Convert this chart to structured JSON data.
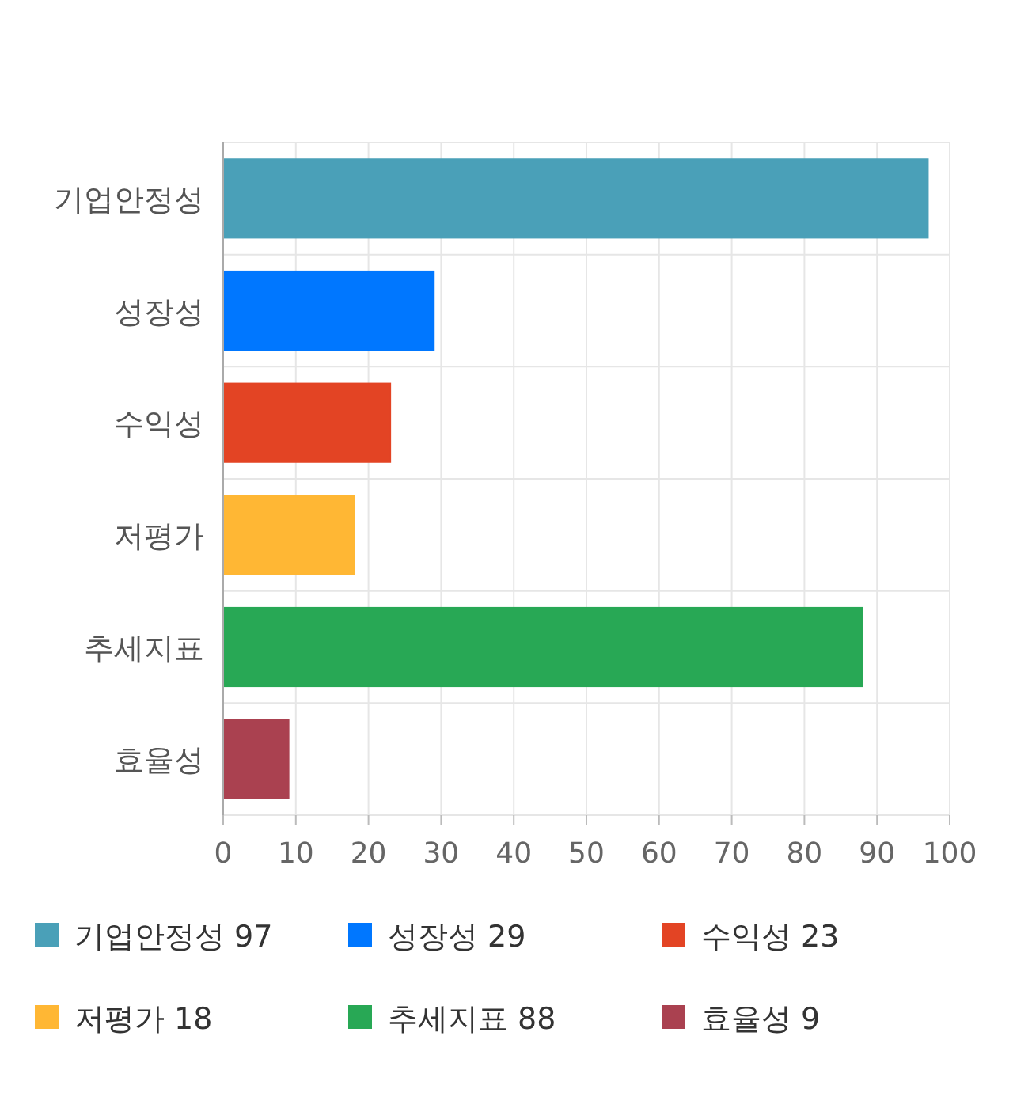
{
  "chart_data": {
    "type": "bar",
    "orientation": "horizontal",
    "stacked": true,
    "categories": [
      "기업안정성",
      "성장성",
      "수익성",
      "저평가",
      "추세지표",
      "효율성"
    ],
    "series": [
      {
        "name": "기업안정성 97",
        "color": "#4aa0b8",
        "values": [
          97,
          null,
          null,
          null,
          null,
          null
        ]
      },
      {
        "name": "성장성 29",
        "color": "#0077ff",
        "values": [
          null,
          29,
          null,
          null,
          null,
          null
        ]
      },
      {
        "name": "수익성 23",
        "color": "#e34424",
        "values": [
          null,
          null,
          23,
          null,
          null,
          null
        ]
      },
      {
        "name": "저평가 18",
        "color": "#ffb734",
        "values": [
          null,
          null,
          null,
          18,
          null,
          null
        ]
      },
      {
        "name": "추세지표 88",
        "color": "#28a855",
        "values": [
          null,
          null,
          null,
          null,
          88,
          null
        ]
      },
      {
        "name": "효율성 9",
        "color": "#aa4150",
        "values": [
          null,
          null,
          null,
          null,
          null,
          9
        ]
      }
    ],
    "xlim": [
      0,
      100
    ],
    "xticks": [
      0,
      10,
      20,
      30,
      40,
      50,
      60,
      70,
      80,
      90,
      100
    ],
    "grid": true,
    "legend": "bottom"
  }
}
